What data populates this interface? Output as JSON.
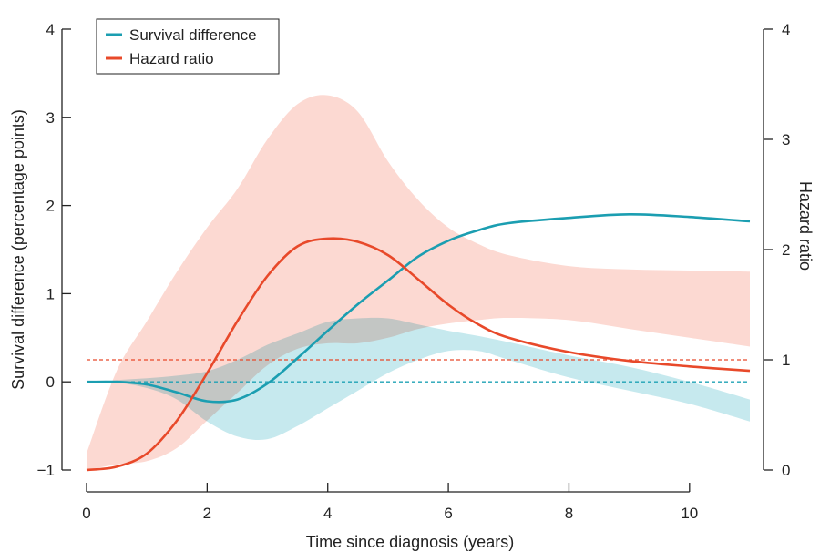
{
  "chart_data": {
    "type": "line",
    "xlabel": "Time since diagnosis (years)",
    "ylabel_left": "Survival difference (percentage points)",
    "ylabel_right": "Hazard ratio",
    "xlim": [
      0,
      11
    ],
    "ylim_left": [
      -1,
      4
    ],
    "ylim_right": [
      0,
      4
    ],
    "x_ticks": [
      0,
      2,
      4,
      6,
      8,
      10
    ],
    "y_left_ticks": [
      -1,
      0,
      1,
      2,
      3,
      4
    ],
    "y_left_tick_labels": [
      "−1",
      "0",
      "1",
      "2",
      "3",
      "4"
    ],
    "y_right_ticks": [
      0,
      1,
      2,
      3,
      4
    ],
    "legend_position": "top-left",
    "grid": false,
    "reference_lines": [
      {
        "axis": "left",
        "y": 0,
        "color": "#1fa2b5",
        "style": "dashed"
      },
      {
        "axis": "right",
        "y": 1,
        "color": "#e8492a",
        "style": "dashed"
      }
    ],
    "series": [
      {
        "name": "Survival difference",
        "axis": "left",
        "color": "#1b9eb1",
        "band_color": "#c6e9ee",
        "x": [
          0,
          0.5,
          1,
          1.5,
          2,
          2.5,
          3,
          3.5,
          4,
          4.5,
          5,
          5.5,
          6,
          6.5,
          7,
          8,
          9,
          10,
          11
        ],
        "values": [
          0,
          0,
          -0.03,
          -0.12,
          -0.22,
          -0.2,
          -0.02,
          0.27,
          0.58,
          0.88,
          1.15,
          1.42,
          1.6,
          1.72,
          1.8,
          1.86,
          1.9,
          1.87,
          1.82
        ],
        "lower": [
          0,
          -0.01,
          -0.07,
          -0.2,
          -0.45,
          -0.62,
          -0.65,
          -0.5,
          -0.3,
          -0.1,
          0.1,
          0.25,
          0.35,
          0.35,
          0.25,
          0.05,
          -0.1,
          -0.25,
          -0.45
        ],
        "upper": [
          0,
          0.02,
          0.04,
          0.07,
          0.12,
          0.25,
          0.42,
          0.55,
          0.68,
          0.72,
          0.72,
          0.65,
          0.58,
          0.52,
          0.45,
          0.3,
          0.17,
          0.0,
          -0.2
        ]
      },
      {
        "name": "Hazard ratio",
        "axis": "right",
        "color": "#e8492a",
        "band_color": "#fcd9d2",
        "x": [
          0,
          0.5,
          1,
          1.5,
          2,
          2.5,
          3,
          3.5,
          4,
          4.5,
          5,
          5.5,
          6,
          6.5,
          7,
          8,
          9,
          10,
          11
        ],
        "values": [
          0,
          0.03,
          0.15,
          0.45,
          0.88,
          1.35,
          1.76,
          2.03,
          2.1,
          2.07,
          1.95,
          1.73,
          1.5,
          1.32,
          1.2,
          1.07,
          0.99,
          0.94,
          0.9
        ],
        "lower": [
          0,
          0.05,
          0.08,
          0.2,
          0.45,
          0.7,
          0.95,
          1.1,
          1.15,
          1.15,
          1.2,
          1.28,
          1.33,
          1.36,
          1.38,
          1.36,
          1.28,
          1.2,
          1.12
        ],
        "upper": [
          0.15,
          0.9,
          1.35,
          1.8,
          2.2,
          2.55,
          3.0,
          3.32,
          3.4,
          3.25,
          2.8,
          2.45,
          2.2,
          2.05,
          1.95,
          1.85,
          1.82,
          1.81,
          1.8
        ]
      }
    ]
  }
}
